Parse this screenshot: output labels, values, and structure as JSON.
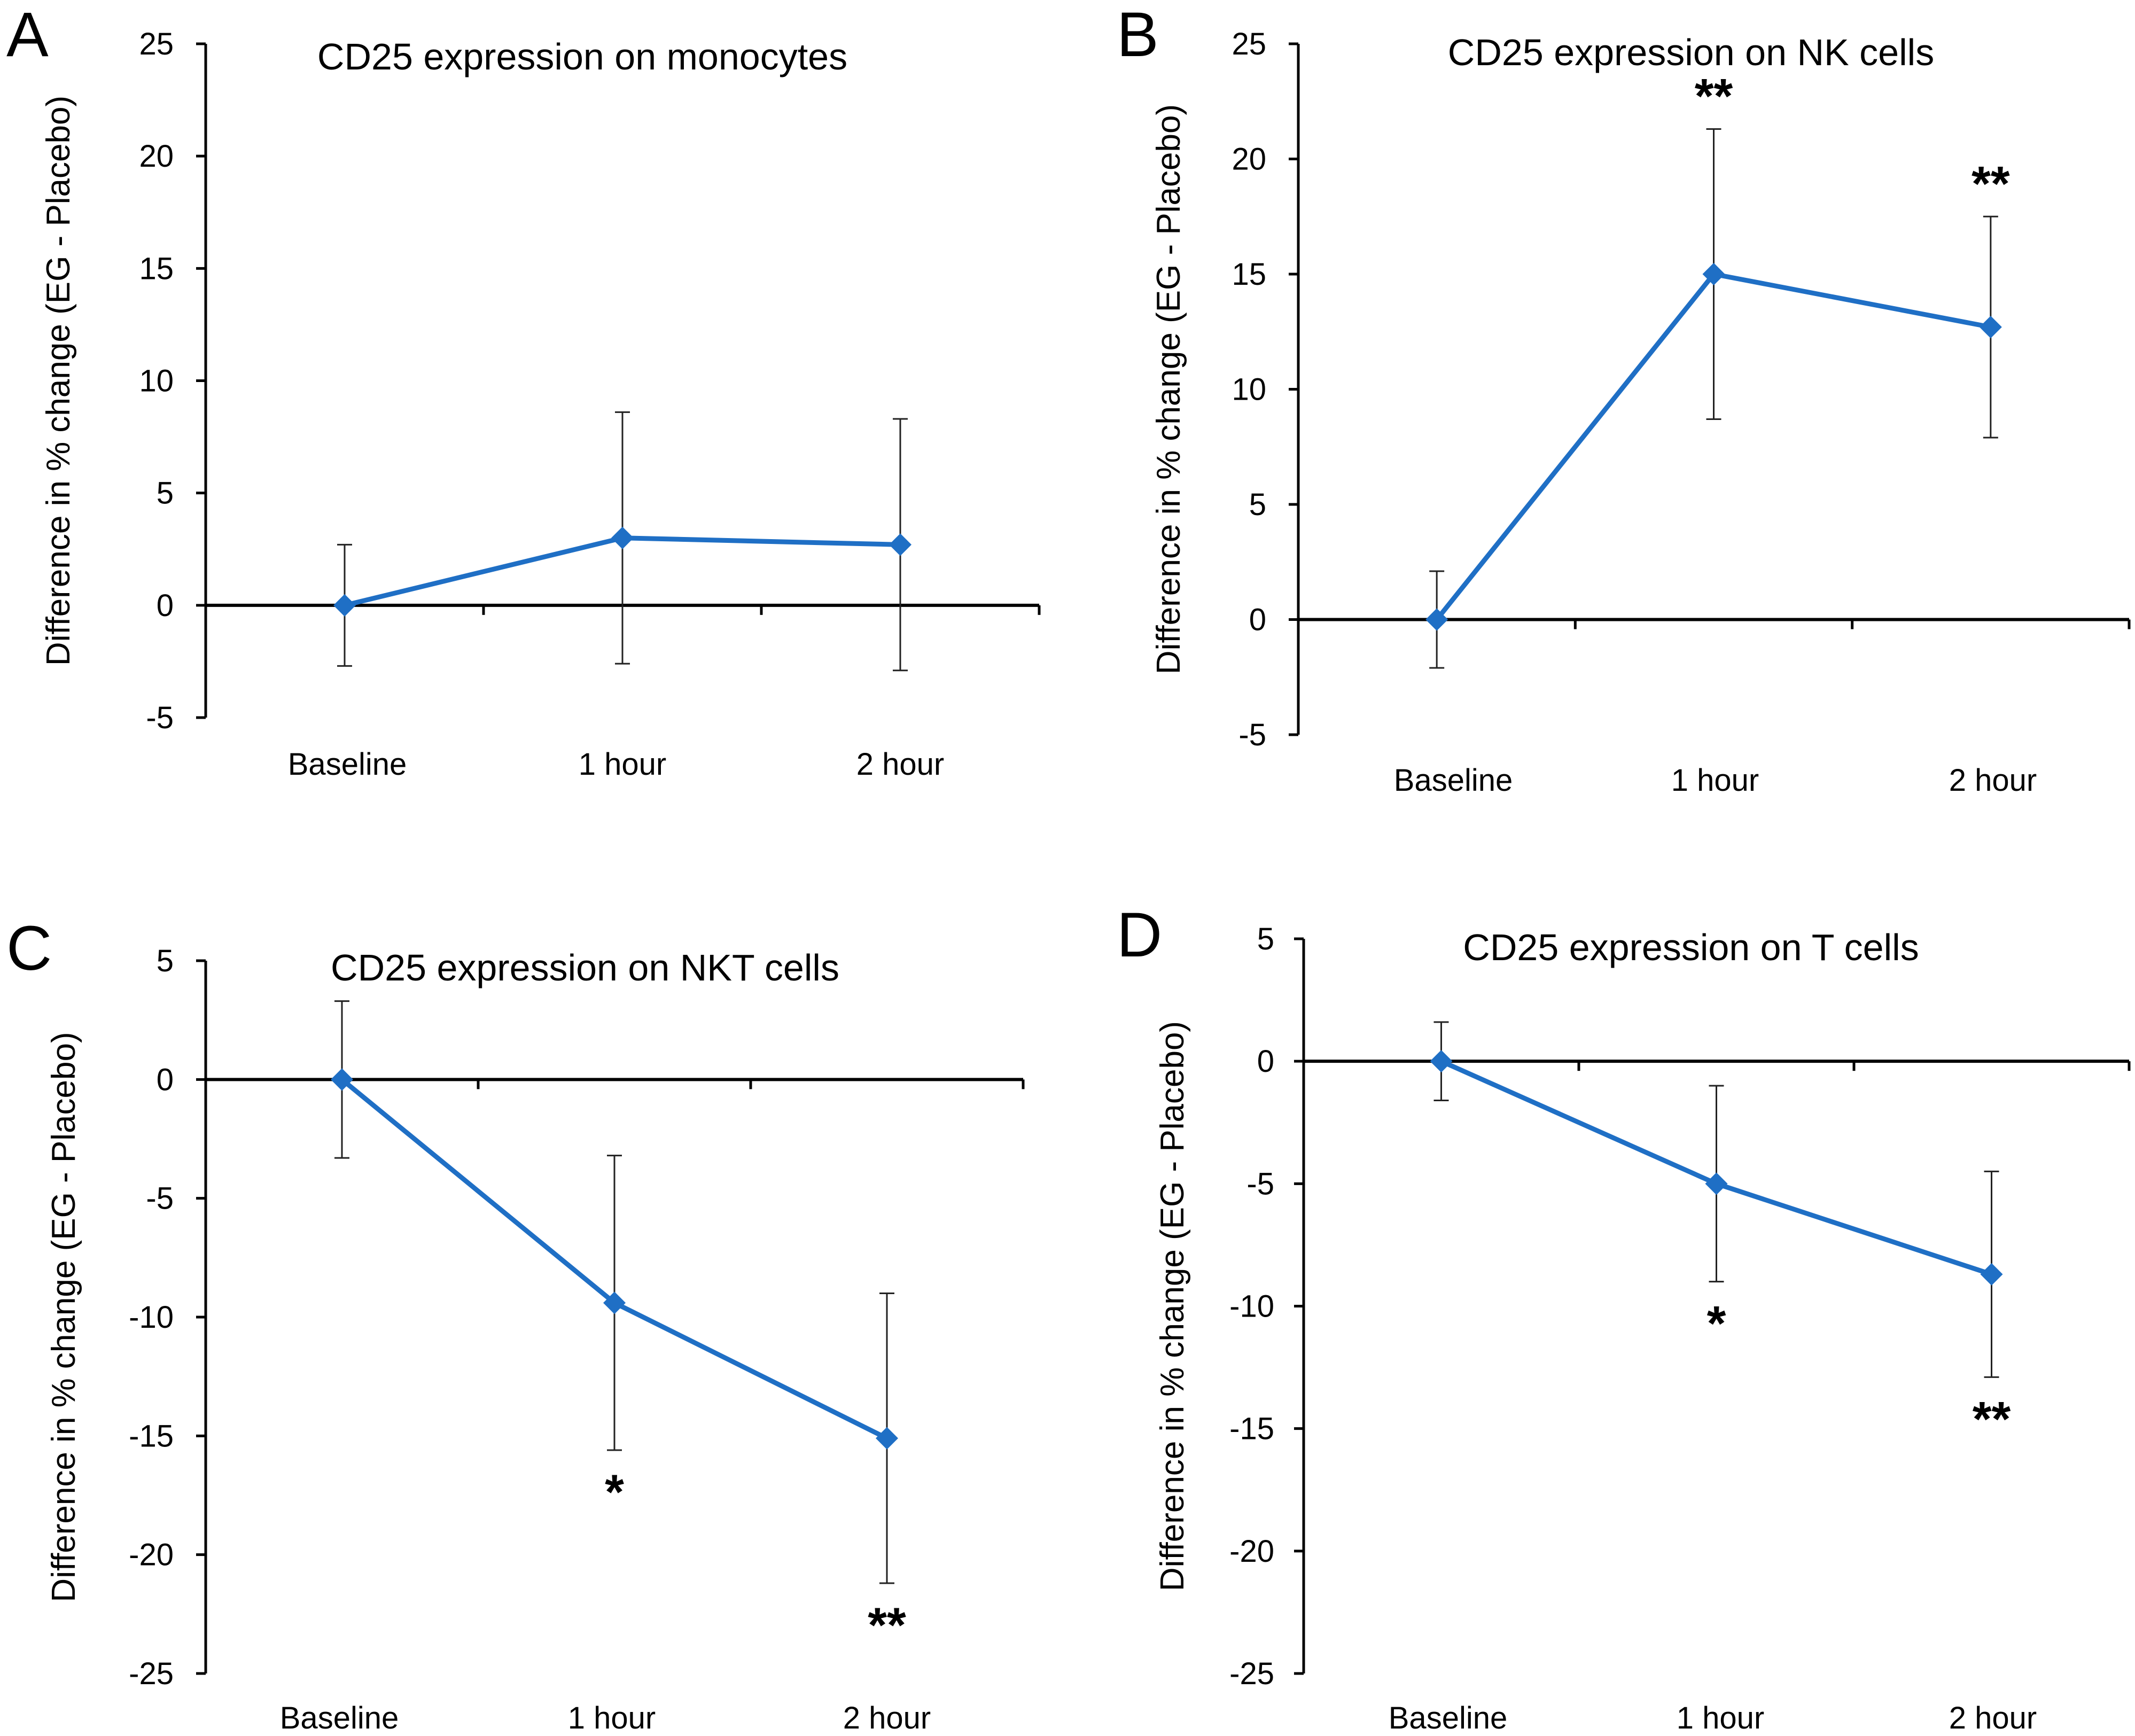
{
  "figure": {
    "panels": [
      "A",
      "B",
      "C",
      "D"
    ]
  },
  "colors": {
    "series": "#1f6fc5",
    "axis": "#000000",
    "error_bar": "#222222"
  },
  "chart_data": [
    {
      "panel": "A",
      "type": "line",
      "title": "CD25 expression on monocytes",
      "xlabel": "",
      "ylabel": "Difference in % change (EG - Placebo)",
      "categories": [
        "Baseline",
        "1 hour",
        "2 hour"
      ],
      "series": [
        {
          "name": "EG - Placebo",
          "values": [
            0,
            3.0,
            2.7
          ],
          "errors": [
            2.7,
            5.6,
            5.6
          ]
        }
      ],
      "significance": [
        "",
        "",
        ""
      ],
      "ylim": [
        -5,
        25
      ],
      "yticks": [
        -5,
        0,
        5,
        10,
        15,
        20,
        25
      ],
      "ytick_labels": [
        "-5",
        "0",
        "5",
        "10",
        "15",
        "20",
        "25"
      ],
      "grid": false
    },
    {
      "panel": "B",
      "type": "line",
      "title": "CD25 expression on NK cells",
      "xlabel": "",
      "ylabel": "Difference in % change (EG - Placebo)",
      "categories": [
        "Baseline",
        "1 hour",
        "2 hour"
      ],
      "series": [
        {
          "name": "EG - Placebo",
          "values": [
            0,
            15.0,
            12.7
          ],
          "errors": [
            2.1,
            6.3,
            4.8
          ]
        }
      ],
      "significance": [
        "",
        "**",
        "**"
      ],
      "significance_position": "above",
      "ylim": [
        -5,
        25
      ],
      "yticks": [
        -5,
        0,
        5,
        10,
        15,
        20,
        25
      ],
      "ytick_labels": [
        "-5",
        "0",
        "5",
        "10",
        "15",
        "20",
        "25"
      ],
      "grid": false
    },
    {
      "panel": "C",
      "type": "line",
      "title": "CD25 expression on NKT cells",
      "xlabel": "",
      "ylabel": "Difference in % change (EG - Placebo)",
      "categories": [
        "Baseline",
        "1 hour",
        "2 hour"
      ],
      "series": [
        {
          "name": "EG - Placebo",
          "values": [
            0,
            -9.4,
            -15.1
          ],
          "errors": [
            3.3,
            6.2,
            6.1
          ]
        }
      ],
      "significance": [
        "",
        "*",
        "**"
      ],
      "significance_position": "below",
      "ylim": [
        -25,
        5
      ],
      "yticks": [
        -25,
        -20,
        -15,
        -10,
        -5,
        0,
        5
      ],
      "ytick_labels": [
        "-25",
        "-20",
        "-15",
        "-10",
        "-5",
        "0",
        "5"
      ],
      "grid": false
    },
    {
      "panel": "D",
      "type": "line",
      "title": "CD25 expression on T cells",
      "xlabel": "",
      "ylabel": "Difference in % change (EG - Placebo)",
      "categories": [
        "Baseline",
        "1 hour",
        "2 hour"
      ],
      "series": [
        {
          "name": "EG - Placebo",
          "values": [
            0,
            -5.0,
            -8.7
          ],
          "errors": [
            1.6,
            4.0,
            4.2
          ]
        }
      ],
      "significance": [
        "",
        "*",
        "**"
      ],
      "significance_position": "below",
      "ylim": [
        -25,
        5
      ],
      "yticks": [
        -25,
        -20,
        -15,
        -10,
        -5,
        0,
        5
      ],
      "ytick_labels": [
        "-25",
        "-20",
        "-15",
        "-10",
        "-5",
        "0",
        "5"
      ],
      "grid": false
    }
  ]
}
